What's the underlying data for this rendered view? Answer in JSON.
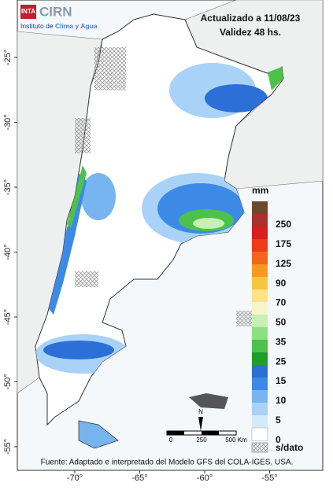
{
  "header": {
    "logo": "INTA",
    "brand": "CIRN",
    "institute_prefix": "Instituto de ",
    "institute_highlight": "Clima y Agua",
    "updated": "Actualizado a 11/08/23",
    "validity": "Validez 48 hs."
  },
  "lat_labels": [
    "-25°",
    "-30°",
    "-35°",
    "-40°",
    "-45°",
    "-50°",
    "-55°"
  ],
  "lon_labels": [
    "-70°",
    "-65°",
    "-60°",
    "-55°"
  ],
  "legend": {
    "title": "mm",
    "labels": [
      "250",
      "175",
      "125",
      "90",
      "70",
      "50",
      "35",
      "25",
      "15",
      "10",
      "5",
      "0"
    ],
    "nodata": "s/dato",
    "colors": [
      "#6b4a2b",
      "#a8322a",
      "#d81e1e",
      "#f03c18",
      "#f5651e",
      "#f59a1e",
      "#f7c640",
      "#fbe386",
      "#f5f5c8",
      "#c8f0b4",
      "#8ee07e",
      "#4cc24c",
      "#1e9e2a",
      "#2c6fd6",
      "#3c8ae6",
      "#78b4f0",
      "#a8d2f8",
      "#d2ebfc",
      "#ffffff"
    ]
  },
  "scale": {
    "labels": [
      "0",
      "250",
      "500 Km"
    ],
    "north": "N"
  },
  "footer": "Fuente: Adaptado e interpretado del Modelo GFS del COLA-IGES, USA."
}
